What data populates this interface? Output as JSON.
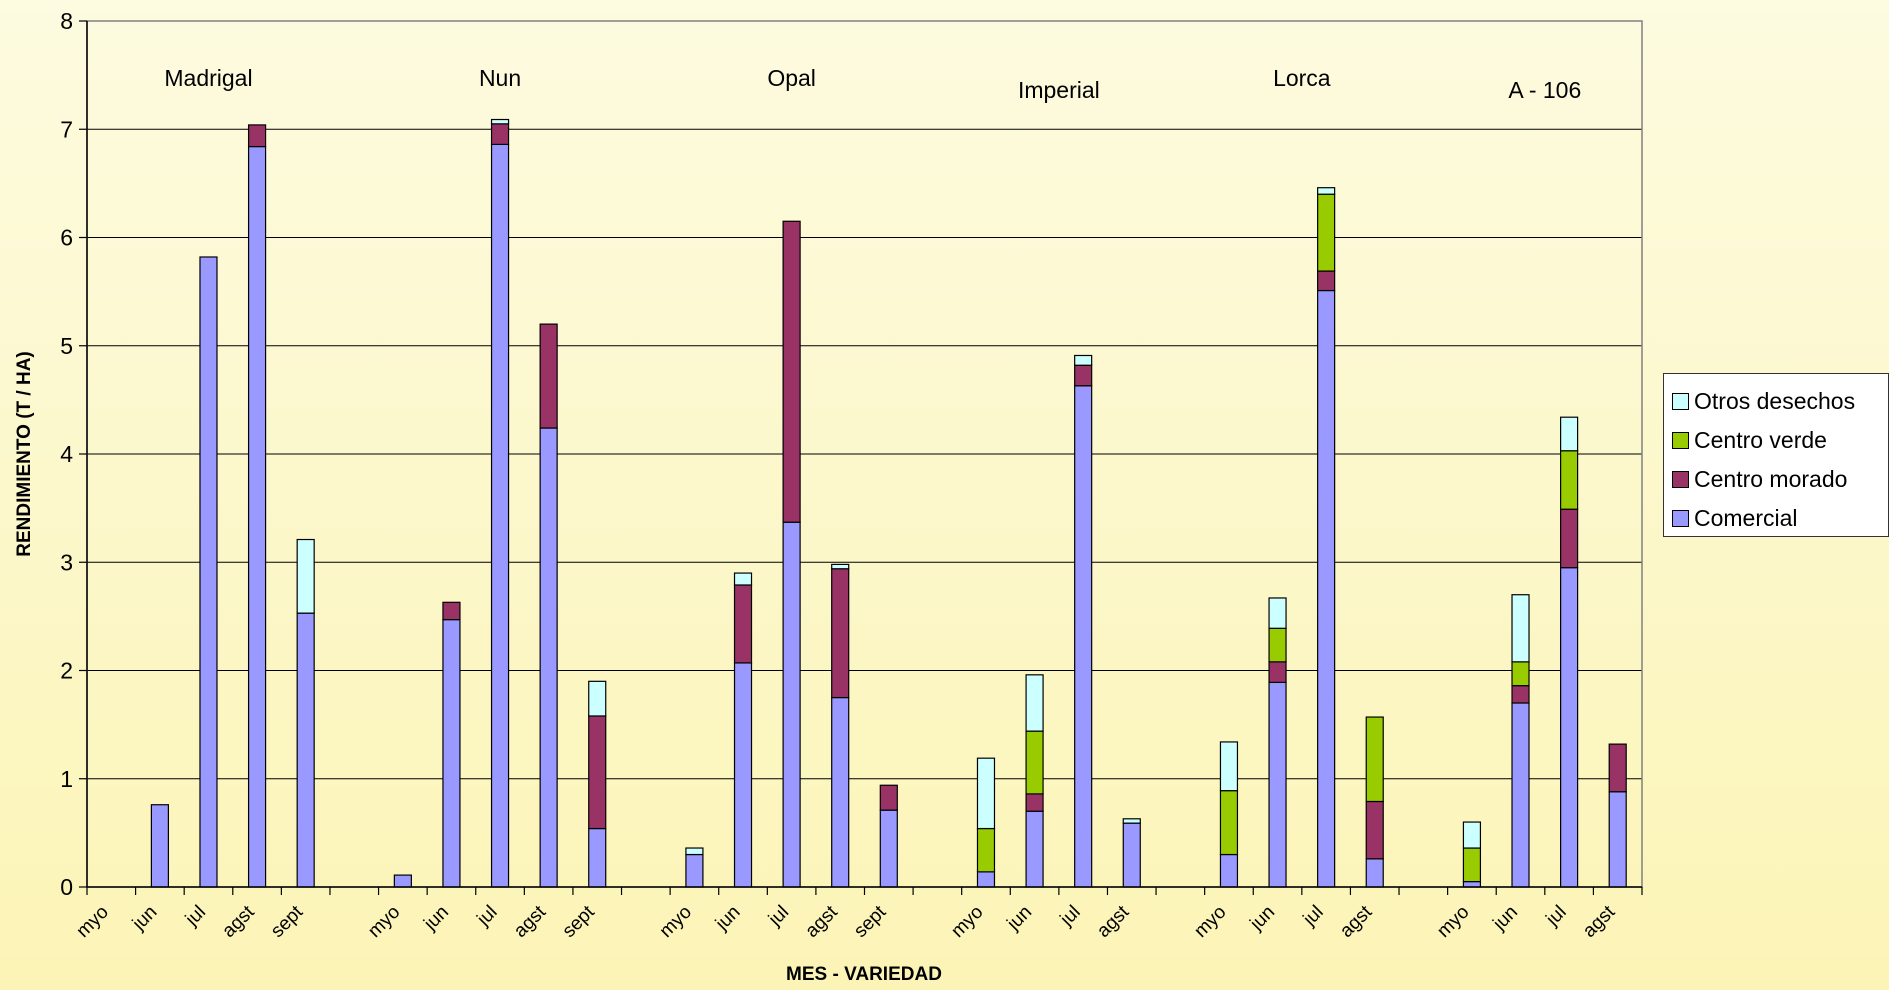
{
  "chart_data": {
    "type": "bar",
    "stacked": true,
    "xlabel": "MES - VARIEDAD",
    "ylabel": "RENDIMIENTO (T / HA)",
    "ylim": [
      0,
      8
    ],
    "yticks": [
      "0",
      "1",
      "2",
      "3",
      "4",
      "5",
      "6",
      "7",
      "8"
    ],
    "grid": true,
    "legend_position": "right",
    "series": [
      {
        "name": "Comercial",
        "color": "#9999ff"
      },
      {
        "name": "Centro morado",
        "color": "#993366"
      },
      {
        "name": "Centro verde",
        "color": "#99cc00"
      },
      {
        "name": "Otros desechos",
        "color": "#ccffff"
      }
    ],
    "groups": [
      {
        "variety": "Madrigal",
        "months": [
          "myo",
          "jun",
          "jul",
          "agst",
          "sept"
        ],
        "values": [
          [
            0,
            0,
            0,
            0
          ],
          [
            0.76,
            0,
            0,
            0
          ],
          [
            5.82,
            0,
            0,
            0
          ],
          [
            6.84,
            0.2,
            0,
            0
          ],
          [
            2.53,
            0,
            0,
            0.68
          ]
        ]
      },
      {
        "variety": "Nun",
        "months": [
          "myo",
          "jun",
          "jul",
          "agst",
          "sept"
        ],
        "values": [
          [
            0.11,
            0,
            0,
            0
          ],
          [
            2.47,
            0.16,
            0,
            0
          ],
          [
            6.86,
            0.19,
            0,
            0.04
          ],
          [
            4.24,
            0.96,
            0,
            0
          ],
          [
            0.54,
            1.04,
            0,
            0.32
          ]
        ]
      },
      {
        "variety": "Opal",
        "months": [
          "myo",
          "jun",
          "jul",
          "agst",
          "sept"
        ],
        "values": [
          [
            0.3,
            0,
            0,
            0.06
          ],
          [
            2.07,
            0.72,
            0,
            0.11
          ],
          [
            3.37,
            2.78,
            0,
            0
          ],
          [
            1.75,
            1.19,
            0,
            0.04
          ],
          [
            0.71,
            0.23,
            0,
            0
          ]
        ]
      },
      {
        "variety": "Imperial",
        "months": [
          "myo",
          "jun",
          "jul",
          "agst"
        ],
        "values": [
          [
            0.14,
            0,
            0.4,
            0.65
          ],
          [
            0.7,
            0.16,
            0.58,
            0.52
          ],
          [
            4.63,
            0.19,
            0,
            0.09
          ],
          [
            0.59,
            0,
            0,
            0.04
          ]
        ]
      },
      {
        "variety": "Lorca",
        "months": [
          "myo",
          "jun",
          "jul",
          "agst"
        ],
        "values": [
          [
            0.3,
            0,
            0.59,
            0.45
          ],
          [
            1.89,
            0.19,
            0.31,
            0.28
          ],
          [
            5.51,
            0.18,
            0.71,
            0.06
          ],
          [
            0.26,
            0.53,
            0.78,
            0
          ]
        ]
      },
      {
        "variety": "A - 106",
        "months": [
          "myo",
          "jun",
          "jul",
          "agst"
        ],
        "values": [
          [
            0.05,
            0,
            0.31,
            0.24
          ],
          [
            1.7,
            0.16,
            0.22,
            0.62
          ],
          [
            2.95,
            0.54,
            0.54,
            0.31
          ],
          [
            0.88,
            0.44,
            0,
            0
          ]
        ]
      }
    ]
  }
}
